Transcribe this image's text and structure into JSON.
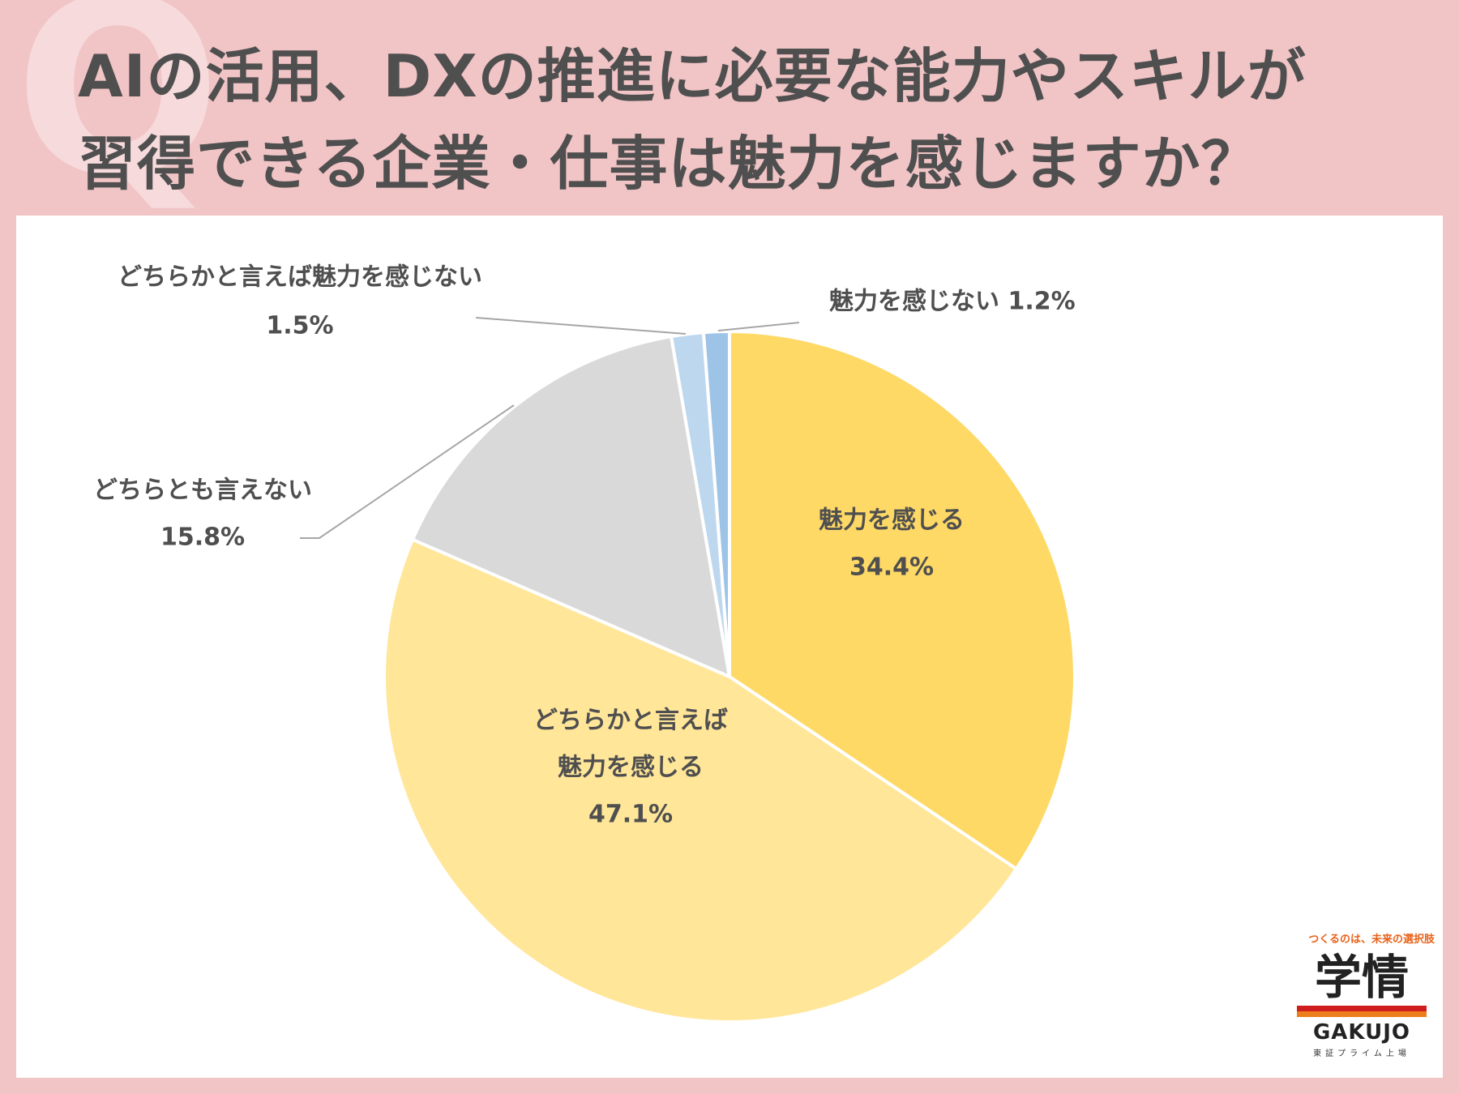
{
  "header": {
    "title_line1": "AIの活用、DXの推進に必要な能力やスキルが",
    "title_line2": "習得できる企業・仕事は魅力を感じますか？",
    "watermark": "Q"
  },
  "chart_data": {
    "type": "pie",
    "start_angle_deg": 0,
    "direction": "clockwise",
    "slices": [
      {
        "label_lines": [
          "魅力を感じる"
        ],
        "value": 34.4,
        "value_label": "34.4%",
        "color": "#ffd966"
      },
      {
        "label_lines": [
          "どちらかと言えば",
          "魅力を感じる"
        ],
        "value": 47.1,
        "value_label": "47.1%",
        "color": "#ffe699"
      },
      {
        "label_lines": [
          "どちらとも言えない"
        ],
        "value": 15.8,
        "value_label": "15.8%",
        "color": "#d9d9d9"
      },
      {
        "label_lines": [
          "どちらかと言えば魅力を感じない"
        ],
        "value": 1.5,
        "value_label": "1.5%",
        "color": "#bdd7ee"
      },
      {
        "label_lines": [
          "魅力を感じない 1.2%"
        ],
        "value": 1.2,
        "value_label": "",
        "color": "#9dc3e6"
      }
    ]
  },
  "logo": {
    "tagline": "つくるのは、未来の選択肢",
    "kanji": "学情",
    "name": "GAKUJO",
    "sub": "東証プライム上場"
  }
}
